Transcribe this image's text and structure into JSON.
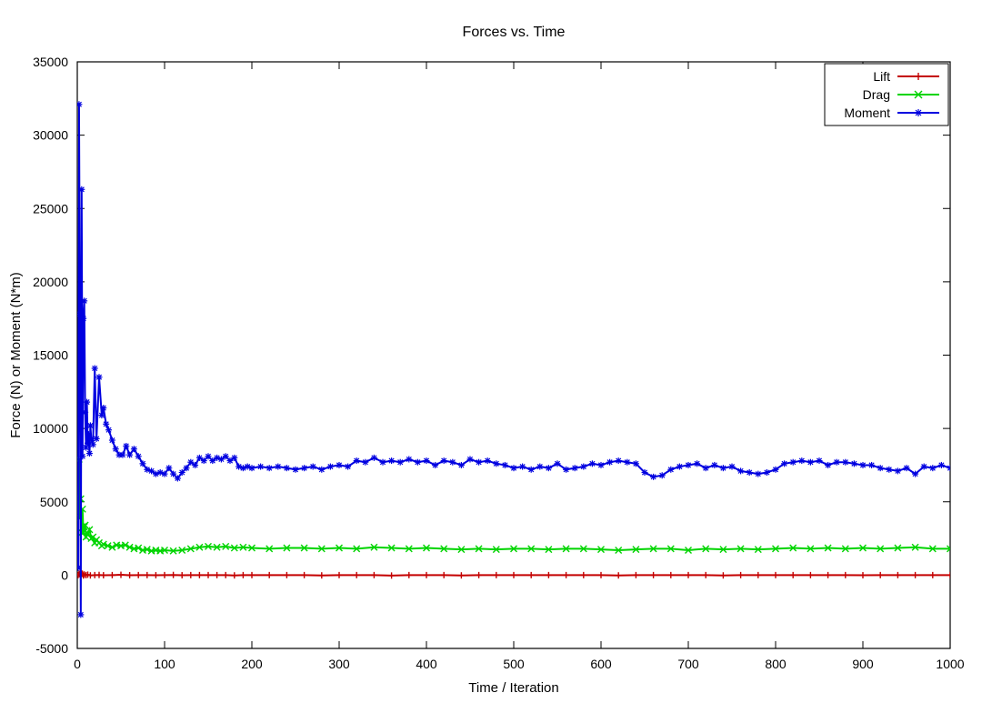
{
  "chart": {
    "type": "line",
    "title": "Forces vs. Time",
    "title_fontsize": 16,
    "xlabel": "Time / Iteration",
    "ylabel": "Force (N) or Moment (N*m)",
    "label_fontsize": 15,
    "tick_fontsize": 14,
    "xlim": [
      0,
      1000
    ],
    "ylim": [
      -5000,
      35000
    ],
    "xtick_step": 100,
    "ytick_step": 5000,
    "background_color": "#ffffff",
    "axis_color": "#000000",
    "tick_color": "#000000",
    "line_width": 2.0,
    "marker_size": 3.5,
    "legend": {
      "entries": [
        "Lift",
        "Drag",
        "Moment"
      ],
      "colors": [
        "#c40000",
        "#00d400",
        "#0000e0"
      ],
      "markers": [
        "plus",
        "x",
        "star"
      ],
      "box_color": "#000000",
      "position": "top-right"
    },
    "series": [
      {
        "name": "Lift",
        "color": "#c40000",
        "marker": "plus",
        "width": 2.0,
        "x": [
          1,
          2,
          3,
          4,
          5,
          6,
          7,
          8,
          10,
          12,
          15,
          20,
          25,
          30,
          40,
          50,
          60,
          70,
          80,
          90,
          100,
          110,
          120,
          130,
          140,
          150,
          160,
          170,
          180,
          190,
          200,
          220,
          240,
          260,
          280,
          300,
          320,
          340,
          360,
          380,
          400,
          420,
          440,
          460,
          480,
          500,
          520,
          540,
          560,
          580,
          600,
          620,
          640,
          660,
          680,
          700,
          720,
          740,
          760,
          780,
          800,
          820,
          840,
          860,
          880,
          900,
          920,
          940,
          960,
          980,
          1000
        ],
        "y": [
          0,
          100,
          50,
          -50,
          120,
          80,
          -30,
          40,
          0,
          30,
          -20,
          0,
          10,
          -10,
          0,
          20,
          -10,
          0,
          0,
          -10,
          0,
          10,
          -10,
          0,
          0,
          0,
          0,
          0,
          -20,
          0,
          0,
          0,
          0,
          0,
          -20,
          0,
          0,
          0,
          -30,
          0,
          0,
          0,
          -20,
          0,
          0,
          0,
          0,
          0,
          0,
          0,
          0,
          -20,
          0,
          0,
          0,
          0,
          0,
          -20,
          0,
          0,
          0,
          0,
          0,
          0,
          0,
          -10,
          0,
          0,
          0,
          0,
          0
        ]
      },
      {
        "name": "Drag",
        "color": "#00d400",
        "marker": "x",
        "width": 2.0,
        "x": [
          1,
          2,
          3,
          4,
          5,
          6,
          7,
          8,
          9,
          10,
          12,
          14,
          16,
          18,
          20,
          22,
          25,
          28,
          30,
          35,
          40,
          45,
          50,
          55,
          60,
          65,
          70,
          75,
          80,
          85,
          90,
          95,
          100,
          110,
          120,
          130,
          140,
          150,
          160,
          170,
          180,
          190,
          200,
          220,
          240,
          260,
          280,
          300,
          320,
          340,
          360,
          380,
          400,
          420,
          440,
          460,
          480,
          500,
          520,
          540,
          560,
          580,
          600,
          620,
          640,
          660,
          680,
          700,
          720,
          740,
          760,
          780,
          800,
          820,
          840,
          860,
          880,
          900,
          920,
          940,
          960,
          980,
          1000
        ],
        "y": [
          4300,
          7900,
          3900,
          5200,
          2900,
          4500,
          2900,
          3300,
          3400,
          2600,
          2800,
          3100,
          2500,
          2600,
          2200,
          2400,
          2200,
          2000,
          2100,
          2000,
          1900,
          2050,
          2000,
          2050,
          1900,
          1800,
          1850,
          1700,
          1750,
          1650,
          1700,
          1650,
          1700,
          1650,
          1700,
          1800,
          1900,
          1950,
          1900,
          1950,
          1850,
          1900,
          1850,
          1800,
          1850,
          1850,
          1800,
          1850,
          1800,
          1900,
          1850,
          1800,
          1850,
          1800,
          1750,
          1800,
          1750,
          1800,
          1800,
          1750,
          1800,
          1800,
          1750,
          1700,
          1750,
          1800,
          1800,
          1700,
          1800,
          1750,
          1800,
          1750,
          1800,
          1850,
          1800,
          1850,
          1800,
          1850,
          1800,
          1850,
          1900,
          1800,
          1800
        ]
      },
      {
        "name": "Moment",
        "color": "#0000e0",
        "marker": "star",
        "width": 2.0,
        "x": [
          1,
          2,
          3,
          4,
          5,
          6,
          7,
          8,
          9,
          10,
          11,
          12,
          13,
          14,
          15,
          16,
          18,
          20,
          22,
          25,
          28,
          30,
          33,
          36,
          40,
          44,
          48,
          52,
          56,
          60,
          65,
          70,
          75,
          80,
          85,
          90,
          95,
          100,
          105,
          110,
          115,
          120,
          125,
          130,
          135,
          140,
          145,
          150,
          155,
          160,
          165,
          170,
          175,
          180,
          185,
          190,
          195,
          200,
          210,
          220,
          230,
          240,
          250,
          260,
          270,
          280,
          290,
          300,
          310,
          320,
          330,
          340,
          350,
          360,
          370,
          380,
          390,
          400,
          410,
          420,
          430,
          440,
          450,
          460,
          470,
          480,
          490,
          500,
          510,
          520,
          530,
          540,
          550,
          560,
          570,
          580,
          590,
          600,
          610,
          620,
          630,
          640,
          650,
          660,
          670,
          680,
          690,
          700,
          710,
          720,
          730,
          740,
          750,
          760,
          770,
          780,
          790,
          800,
          810,
          820,
          830,
          840,
          850,
          860,
          870,
          880,
          890,
          900,
          910,
          920,
          930,
          940,
          950,
          960,
          970,
          980,
          990,
          1000
        ],
        "y": [
          500,
          32100,
          17800,
          -2700,
          26300,
          8100,
          17500,
          18700,
          11100,
          8700,
          11800,
          9000,
          9600,
          8300,
          10200,
          9300,
          8900,
          14100,
          9300,
          13500,
          10900,
          11400,
          10300,
          9900,
          9200,
          8600,
          8200,
          8200,
          8800,
          8200,
          8600,
          8100,
          7600,
          7200,
          7100,
          6900,
          7000,
          6900,
          7300,
          6900,
          6600,
          7000,
          7300,
          7700,
          7500,
          8000,
          7800,
          8100,
          7800,
          8000,
          7900,
          8100,
          7800,
          8000,
          7400,
          7300,
          7400,
          7300,
          7400,
          7300,
          7400,
          7300,
          7200,
          7300,
          7400,
          7200,
          7400,
          7500,
          7400,
          7800,
          7700,
          8000,
          7700,
          7800,
          7700,
          7900,
          7700,
          7800,
          7500,
          7800,
          7700,
          7500,
          7900,
          7700,
          7800,
          7600,
          7500,
          7300,
          7400,
          7200,
          7400,
          7300,
          7600,
          7200,
          7300,
          7400,
          7600,
          7500,
          7700,
          7800,
          7700,
          7600,
          7000,
          6700,
          6800,
          7200,
          7400,
          7500,
          7600,
          7300,
          7500,
          7300,
          7400,
          7100,
          7000,
          6900,
          7000,
          7200,
          7600,
          7700,
          7800,
          7700,
          7800,
          7500,
          7700,
          7700,
          7600,
          7500,
          7500,
          7300,
          7200,
          7100,
          7300,
          6900,
          7400,
          7300,
          7500,
          7300
        ]
      }
    ]
  }
}
